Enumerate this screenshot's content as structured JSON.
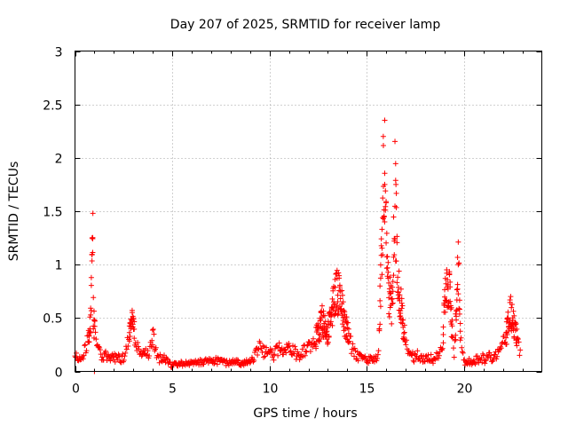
{
  "chart_data": {
    "type": "scatter",
    "title": "Day 207 of 2025, SRMTID for receiver lamp",
    "xlabel": "GPS time / hours",
    "ylabel": "SRMTID / TECUs",
    "xlim": [
      0,
      24
    ],
    "ylim": [
      0,
      3
    ],
    "x_ticks": [
      0,
      5,
      10,
      15,
      20
    ],
    "y_ticks": [
      0,
      0.5,
      1,
      1.5,
      2,
      2.5,
      3
    ],
    "x_tick_labels": [
      "0",
      "5",
      "10",
      "15",
      "20"
    ],
    "y_tick_labels": [
      "0",
      "0.5",
      "1",
      "1.5",
      "2",
      "2.5",
      "3"
    ],
    "grid": true,
    "marker": "plus",
    "color": "#ff0000",
    "envelope": [
      {
        "x": 0.0,
        "y": 0.2
      },
      {
        "x": 0.3,
        "y": 0.15
      },
      {
        "x": 0.6,
        "y": 0.3
      },
      {
        "x": 0.8,
        "y": 0.55
      },
      {
        "x": 0.85,
        "y": 1.0
      },
      {
        "x": 0.9,
        "y": 1.6
      },
      {
        "x": 0.95,
        "y": 0.6
      },
      {
        "x": 1.1,
        "y": 0.3
      },
      {
        "x": 1.5,
        "y": 0.18
      },
      {
        "x": 2.5,
        "y": 0.15
      },
      {
        "x": 2.9,
        "y": 0.5
      },
      {
        "x": 3.0,
        "y": 0.72
      },
      {
        "x": 3.1,
        "y": 0.3
      },
      {
        "x": 3.8,
        "y": 0.2
      },
      {
        "x": 4.0,
        "y": 0.42
      },
      {
        "x": 4.2,
        "y": 0.18
      },
      {
        "x": 5.0,
        "y": 0.08
      },
      {
        "x": 6.0,
        "y": 0.1
      },
      {
        "x": 7.0,
        "y": 0.12
      },
      {
        "x": 8.0,
        "y": 0.1
      },
      {
        "x": 9.0,
        "y": 0.1
      },
      {
        "x": 9.5,
        "y": 0.28
      },
      {
        "x": 10.0,
        "y": 0.18
      },
      {
        "x": 10.8,
        "y": 0.3
      },
      {
        "x": 11.5,
        "y": 0.2
      },
      {
        "x": 12.3,
        "y": 0.35
      },
      {
        "x": 12.7,
        "y": 0.6
      },
      {
        "x": 13.0,
        "y": 0.45
      },
      {
        "x": 13.3,
        "y": 0.8
      },
      {
        "x": 13.5,
        "y": 0.95
      },
      {
        "x": 13.8,
        "y": 0.65
      },
      {
        "x": 14.2,
        "y": 0.3
      },
      {
        "x": 14.5,
        "y": 0.18
      },
      {
        "x": 15.2,
        "y": 0.12
      },
      {
        "x": 15.6,
        "y": 0.2
      },
      {
        "x": 15.8,
        "y": 1.6
      },
      {
        "x": 15.9,
        "y": 2.5
      },
      {
        "x": 16.1,
        "y": 1.0
      },
      {
        "x": 16.3,
        "y": 0.7
      },
      {
        "x": 16.45,
        "y": 2.1
      },
      {
        "x": 16.6,
        "y": 1.1
      },
      {
        "x": 16.9,
        "y": 0.45
      },
      {
        "x": 17.2,
        "y": 0.2
      },
      {
        "x": 18.0,
        "y": 0.15
      },
      {
        "x": 18.5,
        "y": 0.15
      },
      {
        "x": 18.9,
        "y": 0.25
      },
      {
        "x": 19.0,
        "y": 0.85
      },
      {
        "x": 19.2,
        "y": 1.05
      },
      {
        "x": 19.3,
        "y": 0.75
      },
      {
        "x": 19.5,
        "y": 0.15
      },
      {
        "x": 19.7,
        "y": 1.3
      },
      {
        "x": 19.8,
        "y": 0.45
      },
      {
        "x": 20.0,
        "y": 0.12
      },
      {
        "x": 20.5,
        "y": 0.12
      },
      {
        "x": 21.0,
        "y": 0.15
      },
      {
        "x": 21.5,
        "y": 0.18
      },
      {
        "x": 22.0,
        "y": 0.3
      },
      {
        "x": 22.2,
        "y": 0.45
      },
      {
        "x": 22.35,
        "y": 0.72
      },
      {
        "x": 22.6,
        "y": 0.5
      },
      {
        "x": 22.8,
        "y": 0.35
      },
      {
        "x": 22.9,
        "y": 0.2
      }
    ],
    "outliers": [
      {
        "x": 1.0,
        "y": 0.0
      },
      {
        "x": 0.92,
        "y": 1.48
      },
      {
        "x": 0.88,
        "y": 1.25
      },
      {
        "x": 15.85,
        "y": 2.2
      },
      {
        "x": 15.92,
        "y": 1.4
      },
      {
        "x": 16.5,
        "y": 1.75
      }
    ]
  }
}
